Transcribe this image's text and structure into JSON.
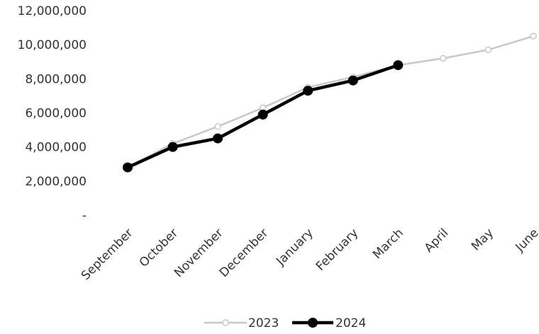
{
  "chart_data": {
    "type": "line",
    "categories": [
      "September",
      "October",
      "November",
      "December",
      "January",
      "February",
      "March",
      "April",
      "May",
      "June"
    ],
    "y_tick_labels": [
      "-",
      "2,000,000",
      "4,000,000",
      "6,000,000",
      "8,000,000",
      "10,000,000",
      "12,000,000"
    ],
    "y_ticks": [
      0,
      2000000,
      4000000,
      6000000,
      8000000,
      10000000,
      12000000
    ],
    "ylim": [
      0,
      12000000
    ],
    "grid": false,
    "legend_position": "bottom",
    "series": [
      {
        "name": "2023",
        "color": "#c8c8c8",
        "values": [
          2800000,
          4200000,
          5200000,
          6300000,
          7500000,
          8100000,
          8800000,
          9200000,
          9700000,
          10500000
        ]
      },
      {
        "name": "2024",
        "color": "#000000",
        "values": [
          2800000,
          4000000,
          4500000,
          5900000,
          7300000,
          7900000,
          8800000,
          null,
          null,
          null
        ]
      }
    ]
  }
}
